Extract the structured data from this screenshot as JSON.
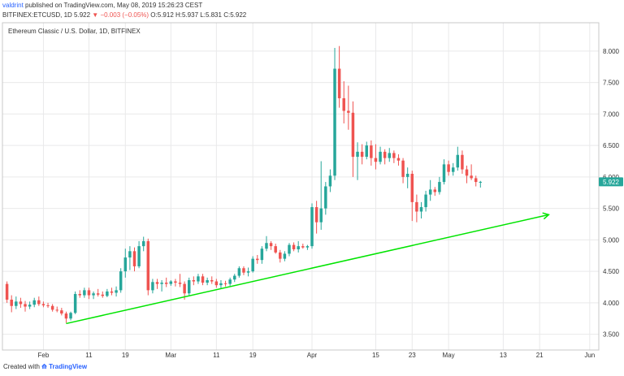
{
  "header": {
    "author": "valdrint",
    "published_text": "published on TradingView.com, May 08, 2019 15:26:23 CEST",
    "symbol": "BITFINEX:ETCUSD, 1D",
    "last": "5.922",
    "change": "−0.003 (−0.05%)",
    "open": "O:5.912",
    "high": "H:5.937",
    "low": "L:5.831",
    "close": "C:5.922"
  },
  "footer": {
    "created_with": "Created with",
    "brand": "TradingView"
  },
  "colors": {
    "up": "#26a69a",
    "down": "#ef5350",
    "trendline": "#00e400",
    "grid": "#e9e9ea",
    "price_label": "#26a69a"
  },
  "chart_data": {
    "type": "candlestick",
    "title": "Ethereum Classic / U.S. Dollar, 1D, BITFINEX",
    "y_ticks": [
      "3.500",
      "4.000",
      "4.500",
      "5.000",
      "5.500",
      "6.000",
      "6.500",
      "7.000",
      "7.500",
      "8.000"
    ],
    "ylim": [
      3.25,
      8.45
    ],
    "x_ticks": [
      {
        "label": "Feb",
        "date": "2019-02-01"
      },
      {
        "label": "11",
        "date": "2019-02-11"
      },
      {
        "label": "19",
        "date": "2019-02-19"
      },
      {
        "label": "Mar",
        "date": "2019-03-01"
      },
      {
        "label": "11",
        "date": "2019-03-11"
      },
      {
        "label": "19",
        "date": "2019-03-19"
      },
      {
        "label": "Apr",
        "date": "2019-04-01"
      },
      {
        "label": "15",
        "date": "2019-04-15"
      },
      {
        "label": "23",
        "date": "2019-04-23"
      },
      {
        "label": "May",
        "date": "2019-05-01"
      },
      {
        "label": "13",
        "date": "2019-05-13"
      },
      {
        "label": "21",
        "date": "2019-05-21"
      },
      {
        "label": "Jun",
        "date": "2019-06-01"
      }
    ],
    "xlim": [
      "2019-01-23",
      "2019-06-03"
    ],
    "current_price_label": "5.922",
    "current_price": 5.922,
    "trendline": {
      "start": {
        "date": "2019-02-06",
        "price": 3.67
      },
      "end": {
        "date": "2019-05-23",
        "price": 5.4
      }
    },
    "candles": [
      {
        "date": "2019-01-24",
        "o": 4.3,
        "h": 4.34,
        "l": 4.0,
        "c": 4.05
      },
      {
        "date": "2019-01-25",
        "o": 4.05,
        "h": 4.12,
        "l": 3.85,
        "c": 3.95
      },
      {
        "date": "2019-01-26",
        "o": 3.95,
        "h": 4.1,
        "l": 3.9,
        "c": 4.02
      },
      {
        "date": "2019-01-27",
        "o": 4.02,
        "h": 4.08,
        "l": 3.92,
        "c": 3.98
      },
      {
        "date": "2019-01-28",
        "o": 3.98,
        "h": 4.03,
        "l": 3.86,
        "c": 3.94
      },
      {
        "date": "2019-01-29",
        "o": 3.94,
        "h": 4.02,
        "l": 3.9,
        "c": 3.97
      },
      {
        "date": "2019-01-30",
        "o": 3.97,
        "h": 4.08,
        "l": 3.93,
        "c": 4.04
      },
      {
        "date": "2019-01-31",
        "o": 4.04,
        "h": 4.1,
        "l": 3.95,
        "c": 3.98
      },
      {
        "date": "2019-02-01",
        "o": 3.98,
        "h": 4.02,
        "l": 3.93,
        "c": 3.96
      },
      {
        "date": "2019-02-02",
        "o": 3.96,
        "h": 4.0,
        "l": 3.92,
        "c": 3.95
      },
      {
        "date": "2019-02-03",
        "o": 3.95,
        "h": 3.98,
        "l": 3.86,
        "c": 3.89
      },
      {
        "date": "2019-02-04",
        "o": 3.89,
        "h": 3.94,
        "l": 3.85,
        "c": 3.88
      },
      {
        "date": "2019-02-05",
        "o": 3.88,
        "h": 3.92,
        "l": 3.8,
        "c": 3.83
      },
      {
        "date": "2019-02-06",
        "o": 3.83,
        "h": 3.86,
        "l": 3.68,
        "c": 3.75
      },
      {
        "date": "2019-02-07",
        "o": 3.75,
        "h": 3.86,
        "l": 3.72,
        "c": 3.84
      },
      {
        "date": "2019-02-08",
        "o": 3.84,
        "h": 4.18,
        "l": 3.82,
        "c": 4.14
      },
      {
        "date": "2019-02-09",
        "o": 4.14,
        "h": 4.2,
        "l": 4.08,
        "c": 4.12
      },
      {
        "date": "2019-02-10",
        "o": 4.12,
        "h": 4.24,
        "l": 4.08,
        "c": 4.2
      },
      {
        "date": "2019-02-11",
        "o": 4.2,
        "h": 4.24,
        "l": 4.06,
        "c": 4.12
      },
      {
        "date": "2019-02-12",
        "o": 4.12,
        "h": 4.18,
        "l": 4.06,
        "c": 4.15
      },
      {
        "date": "2019-02-13",
        "o": 4.15,
        "h": 4.22,
        "l": 4.1,
        "c": 4.13
      },
      {
        "date": "2019-02-14",
        "o": 4.13,
        "h": 4.18,
        "l": 4.08,
        "c": 4.11
      },
      {
        "date": "2019-02-15",
        "o": 4.11,
        "h": 4.22,
        "l": 4.09,
        "c": 4.18
      },
      {
        "date": "2019-02-16",
        "o": 4.18,
        "h": 4.24,
        "l": 4.12,
        "c": 4.16
      },
      {
        "date": "2019-02-17",
        "o": 4.16,
        "h": 4.26,
        "l": 4.1,
        "c": 4.2
      },
      {
        "date": "2019-02-18",
        "o": 4.2,
        "h": 4.55,
        "l": 4.16,
        "c": 4.5
      },
      {
        "date": "2019-02-19",
        "o": 4.5,
        "h": 4.86,
        "l": 4.4,
        "c": 4.72
      },
      {
        "date": "2019-02-20",
        "o": 4.72,
        "h": 4.9,
        "l": 4.52,
        "c": 4.82
      },
      {
        "date": "2019-02-21",
        "o": 4.82,
        "h": 4.88,
        "l": 4.5,
        "c": 4.58
      },
      {
        "date": "2019-02-22",
        "o": 4.58,
        "h": 4.98,
        "l": 4.55,
        "c": 4.9
      },
      {
        "date": "2019-02-23",
        "o": 4.9,
        "h": 5.05,
        "l": 4.82,
        "c": 4.98
      },
      {
        "date": "2019-02-24",
        "o": 4.98,
        "h": 5.02,
        "l": 4.12,
        "c": 4.2
      },
      {
        "date": "2019-02-25",
        "o": 4.2,
        "h": 4.38,
        "l": 4.15,
        "c": 4.33
      },
      {
        "date": "2019-02-26",
        "o": 4.33,
        "h": 4.38,
        "l": 4.22,
        "c": 4.3
      },
      {
        "date": "2019-02-27",
        "o": 4.3,
        "h": 4.36,
        "l": 4.18,
        "c": 4.32
      },
      {
        "date": "2019-02-28",
        "o": 4.32,
        "h": 4.4,
        "l": 4.25,
        "c": 4.3
      },
      {
        "date": "2019-03-01",
        "o": 4.3,
        "h": 4.36,
        "l": 4.27,
        "c": 4.34
      },
      {
        "date": "2019-03-02",
        "o": 4.34,
        "h": 4.38,
        "l": 4.26,
        "c": 4.32
      },
      {
        "date": "2019-03-03",
        "o": 4.32,
        "h": 4.46,
        "l": 4.25,
        "c": 4.3
      },
      {
        "date": "2019-03-04",
        "o": 4.3,
        "h": 4.34,
        "l": 4.05,
        "c": 4.15
      },
      {
        "date": "2019-03-05",
        "o": 4.15,
        "h": 4.4,
        "l": 4.12,
        "c": 4.36
      },
      {
        "date": "2019-03-06",
        "o": 4.36,
        "h": 4.42,
        "l": 4.28,
        "c": 4.34
      },
      {
        "date": "2019-03-07",
        "o": 4.34,
        "h": 4.46,
        "l": 4.3,
        "c": 4.42
      },
      {
        "date": "2019-03-08",
        "o": 4.42,
        "h": 4.46,
        "l": 4.28,
        "c": 4.32
      },
      {
        "date": "2019-03-09",
        "o": 4.32,
        "h": 4.4,
        "l": 4.28,
        "c": 4.36
      },
      {
        "date": "2019-03-10",
        "o": 4.36,
        "h": 4.42,
        "l": 4.3,
        "c": 4.34
      },
      {
        "date": "2019-03-11",
        "o": 4.34,
        "h": 4.38,
        "l": 4.24,
        "c": 4.28
      },
      {
        "date": "2019-03-12",
        "o": 4.28,
        "h": 4.36,
        "l": 4.22,
        "c": 4.31
      },
      {
        "date": "2019-03-13",
        "o": 4.31,
        "h": 4.35,
        "l": 4.26,
        "c": 4.3
      },
      {
        "date": "2019-03-14",
        "o": 4.3,
        "h": 4.4,
        "l": 4.27,
        "c": 4.37
      },
      {
        "date": "2019-03-15",
        "o": 4.37,
        "h": 4.46,
        "l": 4.33,
        "c": 4.43
      },
      {
        "date": "2019-03-16",
        "o": 4.43,
        "h": 4.58,
        "l": 4.4,
        "c": 4.55
      },
      {
        "date": "2019-03-17",
        "o": 4.55,
        "h": 4.58,
        "l": 4.44,
        "c": 4.48
      },
      {
        "date": "2019-03-18",
        "o": 4.48,
        "h": 4.56,
        "l": 4.42,
        "c": 4.5
      },
      {
        "date": "2019-03-19",
        "o": 4.5,
        "h": 4.74,
        "l": 4.48,
        "c": 4.7
      },
      {
        "date": "2019-03-20",
        "o": 4.7,
        "h": 4.76,
        "l": 4.62,
        "c": 4.68
      },
      {
        "date": "2019-03-21",
        "o": 4.68,
        "h": 4.9,
        "l": 4.62,
        "c": 4.86
      },
      {
        "date": "2019-03-22",
        "o": 4.86,
        "h": 5.06,
        "l": 4.82,
        "c": 4.95
      },
      {
        "date": "2019-03-23",
        "o": 4.95,
        "h": 4.98,
        "l": 4.84,
        "c": 4.9
      },
      {
        "date": "2019-03-24",
        "o": 4.9,
        "h": 4.94,
        "l": 4.78,
        "c": 4.8
      },
      {
        "date": "2019-03-25",
        "o": 4.8,
        "h": 4.84,
        "l": 4.64,
        "c": 4.7
      },
      {
        "date": "2019-03-26",
        "o": 4.7,
        "h": 4.82,
        "l": 4.66,
        "c": 4.78
      },
      {
        "date": "2019-03-27",
        "o": 4.78,
        "h": 4.95,
        "l": 4.74,
        "c": 4.92
      },
      {
        "date": "2019-03-28",
        "o": 4.92,
        "h": 4.96,
        "l": 4.82,
        "c": 4.85
      },
      {
        "date": "2019-03-29",
        "o": 4.85,
        "h": 4.98,
        "l": 4.8,
        "c": 4.9
      },
      {
        "date": "2019-03-30",
        "o": 4.9,
        "h": 4.94,
        "l": 4.86,
        "c": 4.88
      },
      {
        "date": "2019-03-31",
        "o": 4.88,
        "h": 4.92,
        "l": 4.84,
        "c": 4.9
      },
      {
        "date": "2019-04-01",
        "o": 4.9,
        "h": 5.58,
        "l": 4.86,
        "c": 5.52
      },
      {
        "date": "2019-04-02",
        "o": 5.52,
        "h": 5.62,
        "l": 5.1,
        "c": 5.28
      },
      {
        "date": "2019-04-03",
        "o": 5.28,
        "h": 6.25,
        "l": 5.16,
        "c": 5.5
      },
      {
        "date": "2019-04-04",
        "o": 5.5,
        "h": 5.92,
        "l": 5.4,
        "c": 5.85
      },
      {
        "date": "2019-04-05",
        "o": 5.85,
        "h": 6.12,
        "l": 5.76,
        "c": 6.02
      },
      {
        "date": "2019-04-06",
        "o": 6.02,
        "h": 8.05,
        "l": 5.95,
        "c": 7.72
      },
      {
        "date": "2019-04-07",
        "o": 7.72,
        "h": 8.08,
        "l": 7.1,
        "c": 7.25
      },
      {
        "date": "2019-04-08",
        "o": 7.25,
        "h": 7.52,
        "l": 6.85,
        "c": 7.05
      },
      {
        "date": "2019-04-09",
        "o": 7.05,
        "h": 7.45,
        "l": 6.75,
        "c": 7.02
      },
      {
        "date": "2019-04-10",
        "o": 7.02,
        "h": 7.2,
        "l": 6.0,
        "c": 6.32
      },
      {
        "date": "2019-04-11",
        "o": 6.32,
        "h": 6.55,
        "l": 5.95,
        "c": 6.4
      },
      {
        "date": "2019-04-12",
        "o": 6.4,
        "h": 6.52,
        "l": 6.2,
        "c": 6.32
      },
      {
        "date": "2019-04-13",
        "o": 6.32,
        "h": 6.56,
        "l": 6.28,
        "c": 6.5
      },
      {
        "date": "2019-04-14",
        "o": 6.5,
        "h": 6.58,
        "l": 6.18,
        "c": 6.3
      },
      {
        "date": "2019-04-15",
        "o": 6.3,
        "h": 6.52,
        "l": 6.12,
        "c": 6.24
      },
      {
        "date": "2019-04-16",
        "o": 6.24,
        "h": 6.48,
        "l": 6.2,
        "c": 6.4
      },
      {
        "date": "2019-04-17",
        "o": 6.4,
        "h": 6.44,
        "l": 6.2,
        "c": 6.3
      },
      {
        "date": "2019-04-18",
        "o": 6.3,
        "h": 6.46,
        "l": 6.24,
        "c": 6.38
      },
      {
        "date": "2019-04-19",
        "o": 6.38,
        "h": 6.42,
        "l": 6.22,
        "c": 6.3
      },
      {
        "date": "2019-04-20",
        "o": 6.3,
        "h": 6.36,
        "l": 6.18,
        "c": 6.26
      },
      {
        "date": "2019-04-21",
        "o": 6.26,
        "h": 6.3,
        "l": 5.9,
        "c": 6.0
      },
      {
        "date": "2019-04-22",
        "o": 6.0,
        "h": 6.15,
        "l": 5.82,
        "c": 6.05
      },
      {
        "date": "2019-04-23",
        "o": 6.05,
        "h": 6.1,
        "l": 5.3,
        "c": 5.6
      },
      {
        "date": "2019-04-24",
        "o": 5.6,
        "h": 5.72,
        "l": 5.28,
        "c": 5.45
      },
      {
        "date": "2019-04-25",
        "o": 5.45,
        "h": 5.6,
        "l": 5.34,
        "c": 5.52
      },
      {
        "date": "2019-04-26",
        "o": 5.52,
        "h": 5.78,
        "l": 5.45,
        "c": 5.72
      },
      {
        "date": "2019-04-27",
        "o": 5.72,
        "h": 5.95,
        "l": 5.62,
        "c": 5.8
      },
      {
        "date": "2019-04-28",
        "o": 5.8,
        "h": 5.84,
        "l": 5.7,
        "c": 5.76
      },
      {
        "date": "2019-04-29",
        "o": 5.76,
        "h": 6.0,
        "l": 5.72,
        "c": 5.92
      },
      {
        "date": "2019-04-30",
        "o": 5.92,
        "h": 6.28,
        "l": 5.88,
        "c": 6.2
      },
      {
        "date": "2019-05-01",
        "o": 6.2,
        "h": 6.26,
        "l": 6.02,
        "c": 6.08
      },
      {
        "date": "2019-05-02",
        "o": 6.08,
        "h": 6.22,
        "l": 6.02,
        "c": 6.15
      },
      {
        "date": "2019-05-03",
        "o": 6.15,
        "h": 6.48,
        "l": 6.1,
        "c": 6.35
      },
      {
        "date": "2019-05-04",
        "o": 6.35,
        "h": 6.42,
        "l": 6.05,
        "c": 6.12
      },
      {
        "date": "2019-05-05",
        "o": 6.12,
        "h": 6.18,
        "l": 5.9,
        "c": 6.02
      },
      {
        "date": "2019-05-06",
        "o": 6.02,
        "h": 6.2,
        "l": 5.95,
        "c": 5.98
      },
      {
        "date": "2019-05-07",
        "o": 5.98,
        "h": 6.02,
        "l": 5.85,
        "c": 5.92
      },
      {
        "date": "2019-05-08",
        "o": 5.912,
        "h": 5.937,
        "l": 5.831,
        "c": 5.922
      }
    ]
  }
}
